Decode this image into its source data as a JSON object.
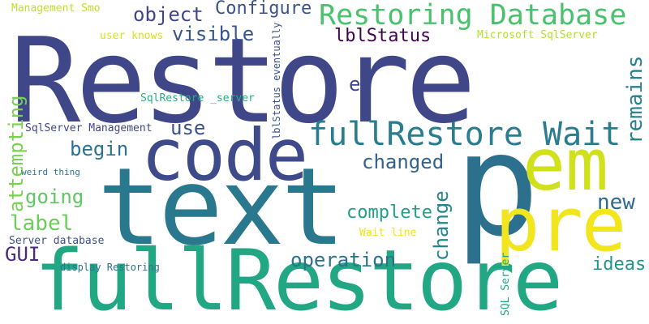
{
  "words": [
    {
      "text": "Restore",
      "color": "#3f4788",
      "rotated": false
    },
    {
      "text": "text",
      "color": "#2a788e",
      "rotated": false
    },
    {
      "text": "fullRestore",
      "color": "#22a785",
      "rotated": false
    },
    {
      "text": "p",
      "color": "#2d708e",
      "rotated": false
    },
    {
      "text": "code",
      "color": "#3e4a89",
      "rotated": false
    },
    {
      "text": "em",
      "color": "#d0e11c",
      "rotated": false
    },
    {
      "text": "pre",
      "color": "#f1e51d",
      "rotated": false
    },
    {
      "text": "Restoring Database",
      "color": "#4ac16d",
      "rotated": false
    },
    {
      "text": "fullRestore Wait",
      "color": "#287d8e",
      "rotated": false
    },
    {
      "text": "object",
      "color": "#404688",
      "rotated": false
    },
    {
      "text": "Configure",
      "color": "#3b528b",
      "rotated": false
    },
    {
      "text": "visible",
      "color": "#39568c",
      "rotated": false
    },
    {
      "text": "lblStatus",
      "color": "#440154",
      "rotated": false
    },
    {
      "text": "e",
      "color": "#3e4989",
      "rotated": false
    },
    {
      "text": "remains",
      "color": "#27808e",
      "rotated": true
    },
    {
      "text": "use",
      "color": "#3b528b",
      "rotated": false
    },
    {
      "text": "begin",
      "color": "#2c728e",
      "rotated": false
    },
    {
      "text": "changed",
      "color": "#33638d",
      "rotated": false
    },
    {
      "text": "attempting",
      "color": "#7ad151",
      "rotated": true
    },
    {
      "text": "going",
      "color": "#5ec962",
      "rotated": false
    },
    {
      "text": "label",
      "color": "#6ccd5a",
      "rotated": false
    },
    {
      "text": "new",
      "color": "#31688e",
      "rotated": false
    },
    {
      "text": "complete",
      "color": "#1fa187",
      "rotated": false
    },
    {
      "text": "change",
      "color": "#25858e",
      "rotated": true
    },
    {
      "text": "GUI",
      "color": "#472c7a",
      "rotated": false
    },
    {
      "text": "operation",
      "color": "#2c728e",
      "rotated": false
    },
    {
      "text": "ideas",
      "color": "#1f968b",
      "rotated": false
    },
    {
      "text": "Management Smo",
      "color": "#c2df23",
      "rotated": false
    },
    {
      "text": "user knows",
      "color": "#d8e219",
      "rotated": false
    },
    {
      "text": "Microsoft SqlServer",
      "color": "#b5de2b",
      "rotated": false
    },
    {
      "text": "SqlRestore _server",
      "color": "#29af7f",
      "rotated": false
    },
    {
      "text": "lblStatus eventually",
      "color": "#3b528b",
      "rotated": true
    },
    {
      "text": "SqlServer Management",
      "color": "#404688",
      "rotated": false
    },
    {
      "text": "weird thing",
      "color": "#2a788e",
      "rotated": false
    },
    {
      "text": "Server database",
      "color": "#3b528b",
      "rotated": false
    },
    {
      "text": "Wait line",
      "color": "#f1e51d",
      "rotated": false
    },
    {
      "text": "SQL Server",
      "color": "#22a785",
      "rotated": true
    },
    {
      "text": "display Restoring",
      "color": "#2c728e",
      "rotated": false
    }
  ]
}
